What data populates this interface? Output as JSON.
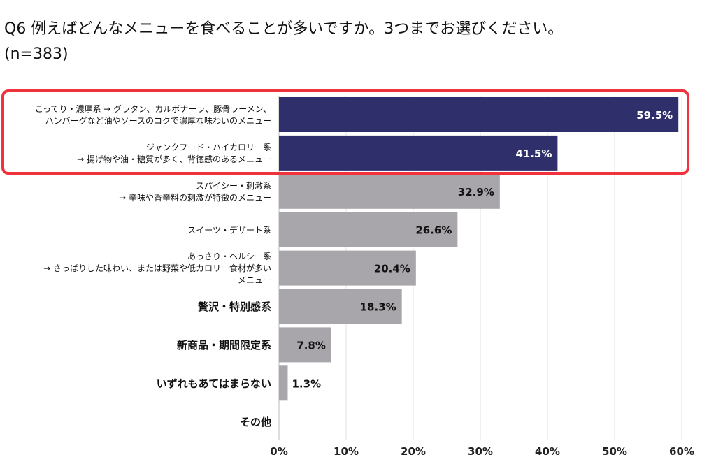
{
  "chart_data": {
    "type": "bar",
    "orientation": "horizontal",
    "title": "Q6 例えばどんなメニューを食べることが多いですか。3つまでお選びください。",
    "subtitle": "(n=383)",
    "categories": [
      [
        "こってり・濃厚系 → グラタン、カルボナーラ、豚骨ラーメン、",
        "ハンバーグなど油やソースのコクで濃厚な味わいのメニュー"
      ],
      [
        "ジャンクフード・ハイカロリー系",
        "→ 揚げ物や油・糖質が多く、背徳感のあるメニュー"
      ],
      [
        "スパイシー・刺激系",
        "→ 辛味や香辛料の刺激が特徴のメニュー"
      ],
      [
        "スイーツ・デザート系"
      ],
      [
        "あっさり・ヘルシー系",
        "→ さっぱりした味わい、または野菜や低カロリー食材が多い",
        "メニュー"
      ],
      [
        "贅沢・特別感系"
      ],
      [
        "新商品・期間限定系"
      ],
      [
        "いずれもあてはまらない"
      ],
      [
        "その他"
      ]
    ],
    "values": [
      59.5,
      41.5,
      32.9,
      26.6,
      20.4,
      18.3,
      7.8,
      1.3,
      0
    ],
    "data_labels": [
      "59.5%",
      "41.5%",
      "32.9%",
      "26.6%",
      "20.4%",
      "18.3%",
      "7.8%",
      "1.3%",
      ""
    ],
    "highlighted": [
      true,
      true,
      false,
      false,
      false,
      false,
      false,
      false,
      false
    ],
    "xlim": [
      0,
      60
    ],
    "xticks": [
      "0%",
      "10%",
      "20%",
      "30%",
      "40%",
      "50%",
      "60%"
    ],
    "grid": true,
    "colors": {
      "highlight": "#2e2f6b",
      "default": "#a9a6ab",
      "box": "#f0323c"
    }
  }
}
